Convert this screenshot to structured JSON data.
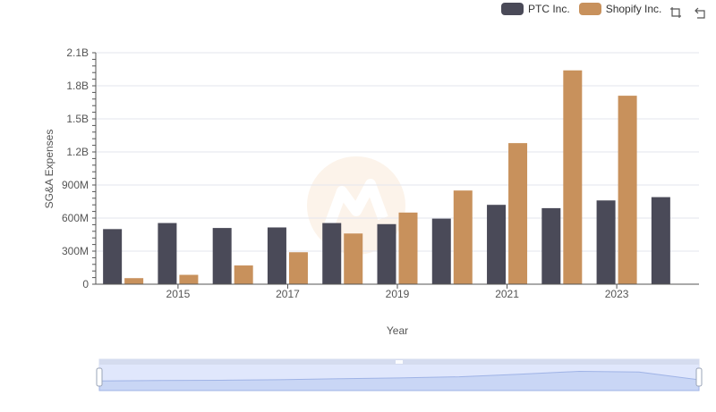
{
  "legend": [
    {
      "name": "PTC Inc.",
      "color": "#4a4a58"
    },
    {
      "name": "Shopify Inc.",
      "color": "#c8915c"
    }
  ],
  "toolbar": {
    "zoom_icon": "zoom-select-icon",
    "reset_icon": "zoom-reset-icon"
  },
  "chart_data": {
    "type": "bar",
    "categories": [
      "2014",
      "2015",
      "2016",
      "2017",
      "2018",
      "2019",
      "2020",
      "2021",
      "2022",
      "2023",
      "2024"
    ],
    "x_tick_labels": [
      "2015",
      "2017",
      "2019",
      "2021",
      "2023"
    ],
    "y_tick_labels": [
      "0",
      "300M",
      "600M",
      "900M",
      "1.2B",
      "1.5B",
      "1.8B",
      "2.1B"
    ],
    "series": [
      {
        "name": "PTC Inc.",
        "color": "#4a4a58",
        "values": [
          500000000,
          555000000,
          510000000,
          515000000,
          555000000,
          545000000,
          595000000,
          720000000,
          690000000,
          760000000,
          790000000
        ]
      },
      {
        "name": "Shopify Inc.",
        "color": "#c8915c",
        "values": [
          55000000,
          85000000,
          170000000,
          290000000,
          460000000,
          650000000,
          850000000,
          1280000000,
          1940000000,
          1710000000,
          null
        ]
      }
    ],
    "xlabel": "Year",
    "ylabel": "SG&A Expenses",
    "ylim": [
      0,
      2100000000
    ],
    "grid": true,
    "legend_position": "top-right"
  }
}
